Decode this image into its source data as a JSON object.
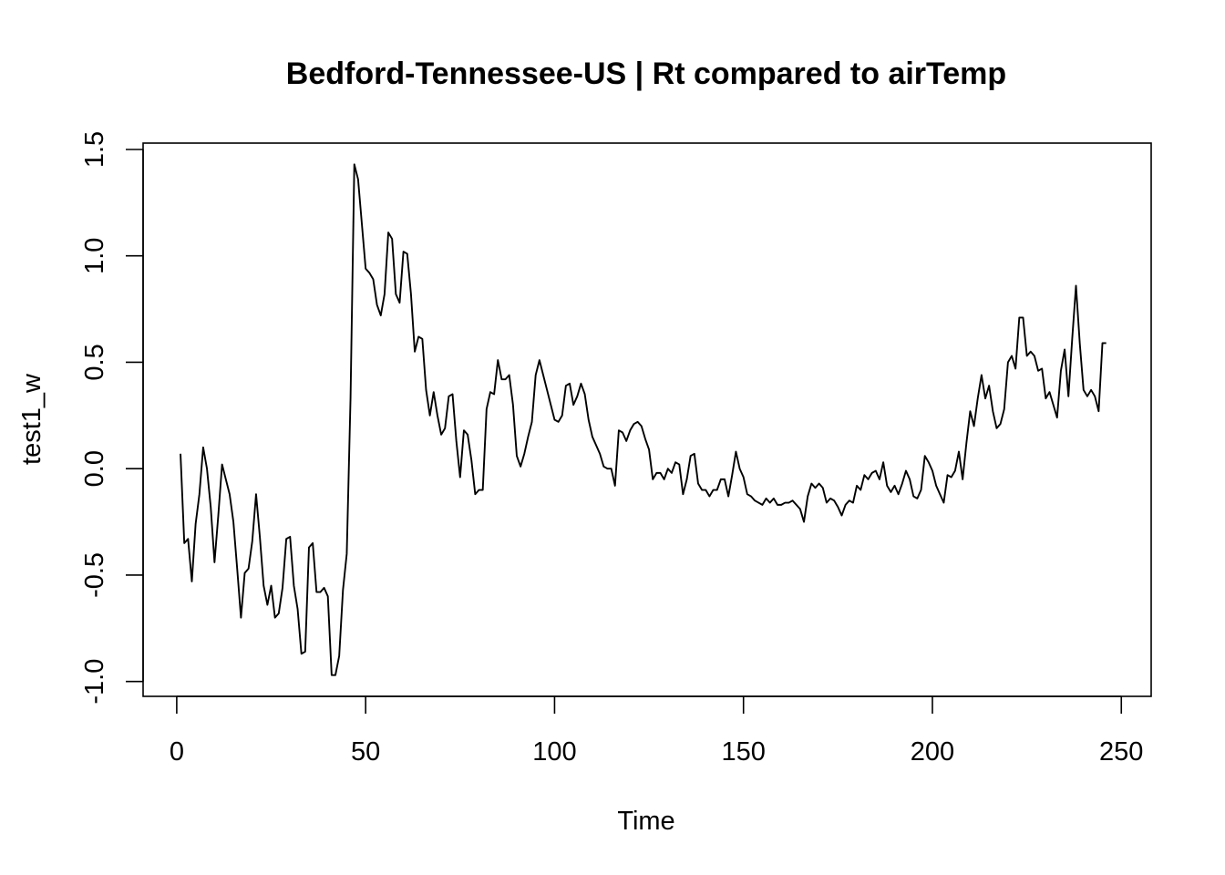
{
  "chart_data": {
    "type": "line",
    "title": "Bedford-Tennessee-US | Rt compared to airTemp",
    "xlabel": "Time",
    "ylabel": "test1_w",
    "xlim": [
      -8.9,
      257.9
    ],
    "ylim": [
      -1.07,
      1.53
    ],
    "x_ticks": [
      0,
      50,
      100,
      150,
      200,
      250
    ],
    "y_ticks": [
      -1.0,
      -0.5,
      0.0,
      0.5,
      1.0,
      1.5
    ],
    "x_tick_labels": [
      "0",
      "50",
      "100",
      "150",
      "200",
      "250"
    ],
    "y_tick_labels": [
      "-1.0",
      "-0.5",
      "0.0",
      "0.5",
      "1.0",
      "1.5"
    ],
    "grid": false,
    "line_color": "#000000",
    "series": [
      {
        "x_start": 1,
        "values": [
          0.07,
          -0.35,
          -0.33,
          -0.53,
          -0.26,
          -0.12,
          0.1,
          0.0,
          -0.18,
          -0.44,
          -0.22,
          0.02,
          -0.05,
          -0.12,
          -0.25,
          -0.47,
          -0.7,
          -0.49,
          -0.47,
          -0.34,
          -0.12,
          -0.32,
          -0.55,
          -0.64,
          -0.55,
          -0.7,
          -0.68,
          -0.56,
          -0.33,
          -0.32,
          -0.55,
          -0.66,
          -0.87,
          -0.86,
          -0.37,
          -0.35,
          -0.58,
          -0.58,
          -0.56,
          -0.6,
          -0.97,
          -0.97,
          -0.88,
          -0.57,
          -0.4,
          0.33,
          1.43,
          1.36,
          1.15,
          0.94,
          0.92,
          0.89,
          0.77,
          0.72,
          0.82,
          1.11,
          1.08,
          0.82,
          0.78,
          1.02,
          1.01,
          0.82,
          0.55,
          0.62,
          0.61,
          0.37,
          0.25,
          0.36,
          0.25,
          0.16,
          0.19,
          0.34,
          0.35,
          0.13,
          -0.04,
          0.18,
          0.16,
          0.04,
          -0.12,
          -0.1,
          -0.1,
          0.28,
          0.36,
          0.35,
          0.51,
          0.42,
          0.42,
          0.44,
          0.3,
          0.06,
          0.01,
          0.07,
          0.15,
          0.22,
          0.44,
          0.51,
          0.44,
          0.37,
          0.3,
          0.23,
          0.22,
          0.25,
          0.39,
          0.4,
          0.3,
          0.34,
          0.4,
          0.35,
          0.23,
          0.15,
          0.11,
          0.07,
          0.01,
          0.0,
          0.0,
          -0.08,
          0.18,
          0.17,
          0.13,
          0.18,
          0.21,
          0.22,
          0.2,
          0.14,
          0.09,
          -0.05,
          -0.02,
          -0.02,
          -0.05,
          0.0,
          -0.02,
          0.03,
          0.02,
          -0.12,
          -0.05,
          0.06,
          0.07,
          -0.07,
          -0.1,
          -0.1,
          -0.13,
          -0.1,
          -0.1,
          -0.05,
          -0.05,
          -0.13,
          -0.03,
          0.08,
          0.0,
          -0.04,
          -0.12,
          -0.13,
          -0.15,
          -0.16,
          -0.17,
          -0.14,
          -0.16,
          -0.14,
          -0.17,
          -0.17,
          -0.16,
          -0.16,
          -0.15,
          -0.17,
          -0.19,
          -0.25,
          -0.13,
          -0.07,
          -0.09,
          -0.07,
          -0.09,
          -0.16,
          -0.14,
          -0.15,
          -0.18,
          -0.22,
          -0.17,
          -0.15,
          -0.16,
          -0.08,
          -0.1,
          -0.03,
          -0.05,
          -0.02,
          -0.01,
          -0.05,
          0.03,
          -0.08,
          -0.11,
          -0.08,
          -0.12,
          -0.07,
          -0.01,
          -0.05,
          -0.13,
          -0.14,
          -0.1,
          0.06,
          0.03,
          -0.01,
          -0.08,
          -0.12,
          -0.16,
          -0.03,
          -0.04,
          -0.01,
          0.08,
          -0.05,
          0.12,
          0.27,
          0.2,
          0.33,
          0.44,
          0.33,
          0.39,
          0.27,
          0.19,
          0.21,
          0.28,
          0.5,
          0.53,
          0.47,
          0.71,
          0.71,
          0.53,
          0.55,
          0.53,
          0.46,
          0.47,
          0.33,
          0.36,
          0.3,
          0.24,
          0.46,
          0.56,
          0.34,
          0.61,
          0.86,
          0.59,
          0.37,
          0.34,
          0.37,
          0.34,
          0.27,
          0.59,
          0.59
        ]
      }
    ]
  }
}
